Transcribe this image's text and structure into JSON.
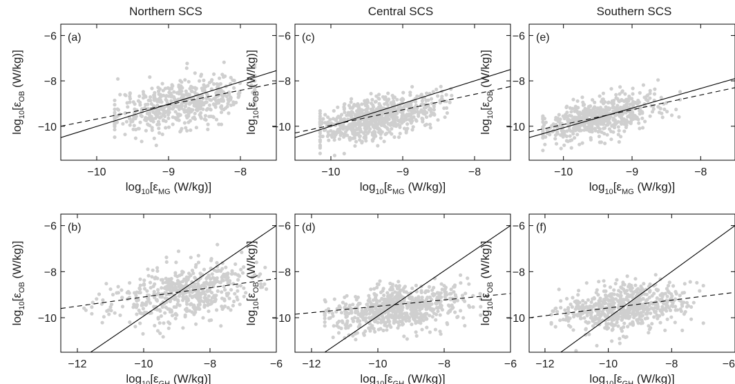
{
  "column_titles": [
    "Northern SCS",
    "Central SCS",
    "Southern SCS"
  ],
  "colors": {
    "points": "#cfcfcf",
    "lines": "#000000",
    "axes": "#000000"
  },
  "chart_data": [
    {
      "panel": "(a)",
      "type": "scatter",
      "title": "Northern SCS",
      "xlabel": {
        "pre": "log",
        "sub1": "10",
        "mid": "[ε",
        "sub2": "MG",
        "post": " (W/kg)]"
      },
      "ylabel": {
        "pre": "log",
        "sub1": "10",
        "mid": "[ε",
        "sub2": "OB",
        "post": " (W/kg)]"
      },
      "xlim": [
        -10.5,
        -7.5
      ],
      "ylim": [
        -11.5,
        -5.5
      ],
      "xticks": [
        -10,
        -9,
        -8
      ],
      "yticks": [
        -6,
        -8,
        -10
      ],
      "cloud": {
        "n": 520,
        "x_mean": -8.85,
        "x_sd": 0.48,
        "x_min": -9.75,
        "x_max": -7.8,
        "y_slope": 0.6,
        "y_at_mean": -9.0,
        "y_sd": 0.55,
        "seed": 11
      },
      "fit_lines": [
        {
          "style": "solid",
          "x": [
            -10.5,
            -7.5
          ],
          "y": [
            -10.5,
            -7.55
          ]
        },
        {
          "style": "dashed",
          "x": [
            -10.5,
            -7.5
          ],
          "y": [
            -10.0,
            -8.1
          ]
        }
      ]
    },
    {
      "panel": "(b)",
      "type": "scatter",
      "title": "",
      "xlabel": {
        "pre": "log",
        "sub1": "10",
        "mid": "[ε",
        "sub2": "GH",
        "post": " (W/kg)]"
      },
      "ylabel": {
        "pre": "log",
        "sub1": "10",
        "mid": "[ε",
        "sub2": "OB",
        "post": " (W/kg)]"
      },
      "xlim": [
        -12.5,
        -6
      ],
      "ylim": [
        -11.5,
        -5.5
      ],
      "xticks": [
        -12,
        -10,
        -8,
        -6
      ],
      "yticks": [
        -6,
        -8,
        -10
      ],
      "cloud": {
        "n": 520,
        "x_mean": -8.9,
        "x_sd": 1.05,
        "x_min": -11.8,
        "x_max": -6.3,
        "y_slope": 0.2,
        "y_at_mean": -8.95,
        "y_sd": 0.6,
        "seed": 23
      },
      "fit_lines": [
        {
          "style": "solid",
          "x": [
            -11.6,
            -6
          ],
          "y": [
            -11.5,
            -6.0
          ]
        },
        {
          "style": "dashed",
          "x": [
            -12.5,
            -6
          ],
          "y": [
            -9.6,
            -8.3
          ]
        }
      ]
    },
    {
      "panel": "(c)",
      "type": "scatter",
      "title": "Central SCS",
      "xlabel": {
        "pre": "log",
        "sub1": "10",
        "mid": "[ε",
        "sub2": "MG",
        "post": " (W/kg)]"
      },
      "ylabel": {
        "pre": "log",
        "sub1": "10",
        "mid": "[ε",
        "sub2": "OB",
        "post": " (W/kg)]"
      },
      "xlim": [
        -10.5,
        -7.5
      ],
      "ylim": [
        -11.5,
        -5.5
      ],
      "xticks": [
        -10,
        -9,
        -8
      ],
      "yticks": [
        -6,
        -8,
        -10
      ],
      "cloud": {
        "n": 700,
        "x_mean": -9.35,
        "x_sd": 0.42,
        "x_min": -10.15,
        "x_max": -8.0,
        "y_slope": 0.62,
        "y_at_mean": -9.6,
        "y_sd": 0.45,
        "seed": 37
      },
      "fit_lines": [
        {
          "style": "solid",
          "x": [
            -10.5,
            -7.5
          ],
          "y": [
            -10.5,
            -7.5
          ]
        },
        {
          "style": "dashed",
          "x": [
            -10.5,
            -7.5
          ],
          "y": [
            -10.3,
            -8.25
          ]
        }
      ]
    },
    {
      "panel": "(d)",
      "type": "scatter",
      "title": "",
      "xlabel": {
        "pre": "log",
        "sub1": "10",
        "mid": "[ε",
        "sub2": "GH",
        "post": " (W/kg)]"
      },
      "ylabel": {
        "pre": "log",
        "sub1": "10",
        "mid": "[ε",
        "sub2": "OB",
        "post": " (W/kg)]"
      },
      "xlim": [
        -12.5,
        -6
      ],
      "ylim": [
        -11.5,
        -5.5
      ],
      "xticks": [
        -12,
        -10,
        -8,
        -6
      ],
      "yticks": [
        -6,
        -8,
        -10
      ],
      "cloud": {
        "n": 700,
        "x_mean": -9.4,
        "x_sd": 1.0,
        "x_min": -11.6,
        "x_max": -6.9,
        "y_slope": 0.18,
        "y_at_mean": -9.6,
        "y_sd": 0.48,
        "seed": 41
      },
      "fit_lines": [
        {
          "style": "solid",
          "x": [
            -11.6,
            -6
          ],
          "y": [
            -11.5,
            -6.0
          ]
        },
        {
          "style": "dashed",
          "x": [
            -12.5,
            -6
          ],
          "y": [
            -9.85,
            -8.95
          ]
        }
      ]
    },
    {
      "panel": "(e)",
      "type": "scatter",
      "title": "Southern SCS",
      "xlabel": {
        "pre": "log",
        "sub1": "10",
        "mid": "[ε",
        "sub2": "MG",
        "post": " (W/kg)]"
      },
      "ylabel": {
        "pre": "log",
        "sub1": "10",
        "mid": "[ε",
        "sub2": "OB",
        "post": " (W/kg)]"
      },
      "xlim": [
        -10.5,
        -7.5
      ],
      "ylim": [
        -11.5,
        -5.5
      ],
      "xticks": [
        -10,
        -9,
        -8
      ],
      "yticks": [
        -6,
        -8,
        -10
      ],
      "cloud": {
        "n": 620,
        "x_mean": -9.45,
        "x_sd": 0.45,
        "x_min": -10.3,
        "x_max": -8.3,
        "y_slope": 0.65,
        "y_at_mean": -9.6,
        "y_sd": 0.42,
        "seed": 53
      },
      "fit_lines": [
        {
          "style": "solid",
          "x": [
            -10.5,
            -7.5
          ],
          "y": [
            -10.5,
            -7.9
          ]
        },
        {
          "style": "dashed",
          "x": [
            -10.5,
            -7.5
          ],
          "y": [
            -10.25,
            -8.3
          ]
        }
      ]
    },
    {
      "panel": "(f)",
      "type": "scatter",
      "title": "",
      "xlabel": {
        "pre": "log",
        "sub1": "10",
        "mid": "[ε",
        "sub2": "GH",
        "post": " (W/kg)]"
      },
      "ylabel": {
        "pre": "log",
        "sub1": "10",
        "mid": "[ε",
        "sub2": "OB",
        "post": " (W/kg)]"
      },
      "xlim": [
        -12.5,
        -6
      ],
      "ylim": [
        -11.5,
        -5.5
      ],
      "xticks": [
        -12,
        -10,
        -8,
        -6
      ],
      "yticks": [
        -6,
        -8,
        -10
      ],
      "cloud": {
        "n": 620,
        "x_mean": -9.6,
        "x_sd": 0.95,
        "x_min": -11.8,
        "x_max": -7.0,
        "y_slope": 0.15,
        "y_at_mean": -9.6,
        "y_sd": 0.48,
        "seed": 67
      },
      "fit_lines": [
        {
          "style": "solid",
          "x": [
            -11.5,
            -6
          ],
          "y": [
            -11.5,
            -6.0
          ]
        },
        {
          "style": "dashed",
          "x": [
            -12.5,
            -6
          ],
          "y": [
            -10.0,
            -8.9
          ]
        }
      ]
    }
  ]
}
